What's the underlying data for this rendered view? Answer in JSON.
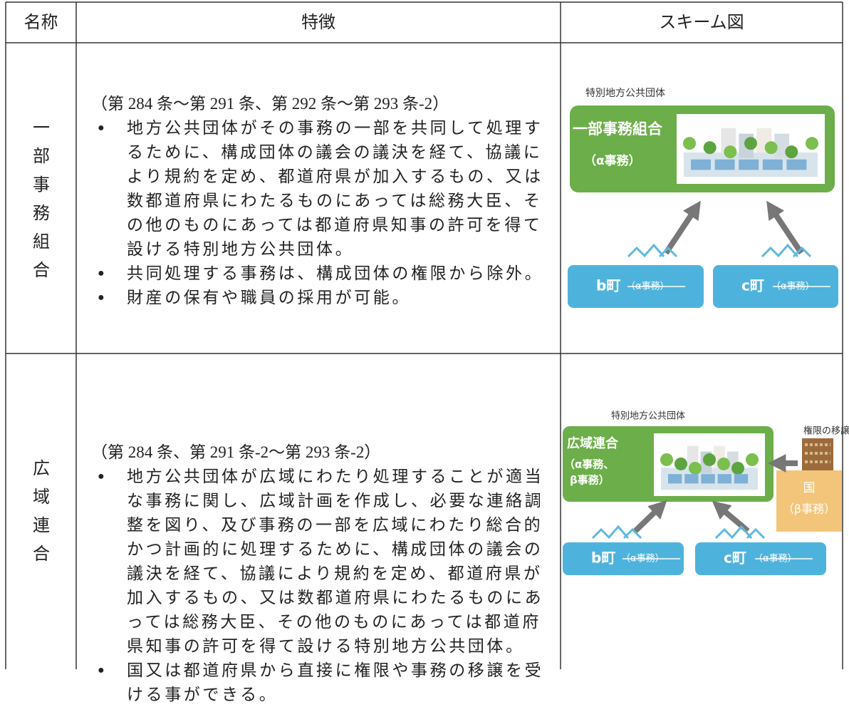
{
  "table": {
    "header": [
      "名称",
      "特徴",
      "スキーム図"
    ],
    "rows": [
      {
        "name": "一部事務組合",
        "articles": "（第 284 条～第 291 条、第 292 条～第 293 条-2）",
        "bullets": [
          [
            "地方公共団体がその事務の一部を共同して処理す",
            "るために、構成団体の議会の議決を経て、協議に",
            "より規約を定め、都道府県が加入するもの、又は",
            "数都道府県にわたるものにあっては総務大臣、そ",
            "の他のものにあっては都道府県知事の許可を得て",
            "設ける特別地方公共団体。"
          ],
          [
            "共同処理する事務は、構成団体の権限から除外。"
          ],
          [
            "財産の保有や職員の採用が可能。"
          ]
        ],
        "scheme": {
          "group_label": "特別地方公共団体",
          "body": "一部事務組合",
          "body_tasks": [
            "（α事務）"
          ],
          "members": [
            {
              "name": "b町",
              "tasks": "（α事務）"
            },
            {
              "name": "c町",
              "tasks": "（α事務）"
            }
          ]
        }
      },
      {
        "name": "広域連合",
        "articles": "（第 284 条、第 291 条-2～第 293 条-2）",
        "bullets": [
          [
            "地方公共団体が広域にわたり処理することが適当",
            "な事務に関し、広域計画を作成し、必要な連絡調",
            "整を図り、及び事務の一部を広域にわたり総合的",
            "かつ計画的に処理するために、構成団体の議会の",
            "議決を経て、協議により規約を定め、都道府県が",
            "加入するもの、又は数都道府県にわたるものにあ",
            "っては総務大臣、その他のものにあっては都道府",
            "県知事の許可を得て設ける特別地方公共団体。"
          ],
          [
            "国又は都道府県から直接に権限や事務の移譲を受",
            "ける事ができる。"
          ]
        ],
        "scheme": {
          "group_label": "特別地方公共団体",
          "body": "広域連合",
          "body_tasks": [
            "（α事務、",
            "β事務）"
          ],
          "transfer_label": "権限の移譲",
          "state": "国",
          "state_tasks": "（β事務）",
          "members": [
            {
              "name": "b町",
              "tasks": "（α事務）"
            },
            {
              "name": "c町",
              "tasks": "（α事務）"
            }
          ]
        }
      }
    ]
  }
}
